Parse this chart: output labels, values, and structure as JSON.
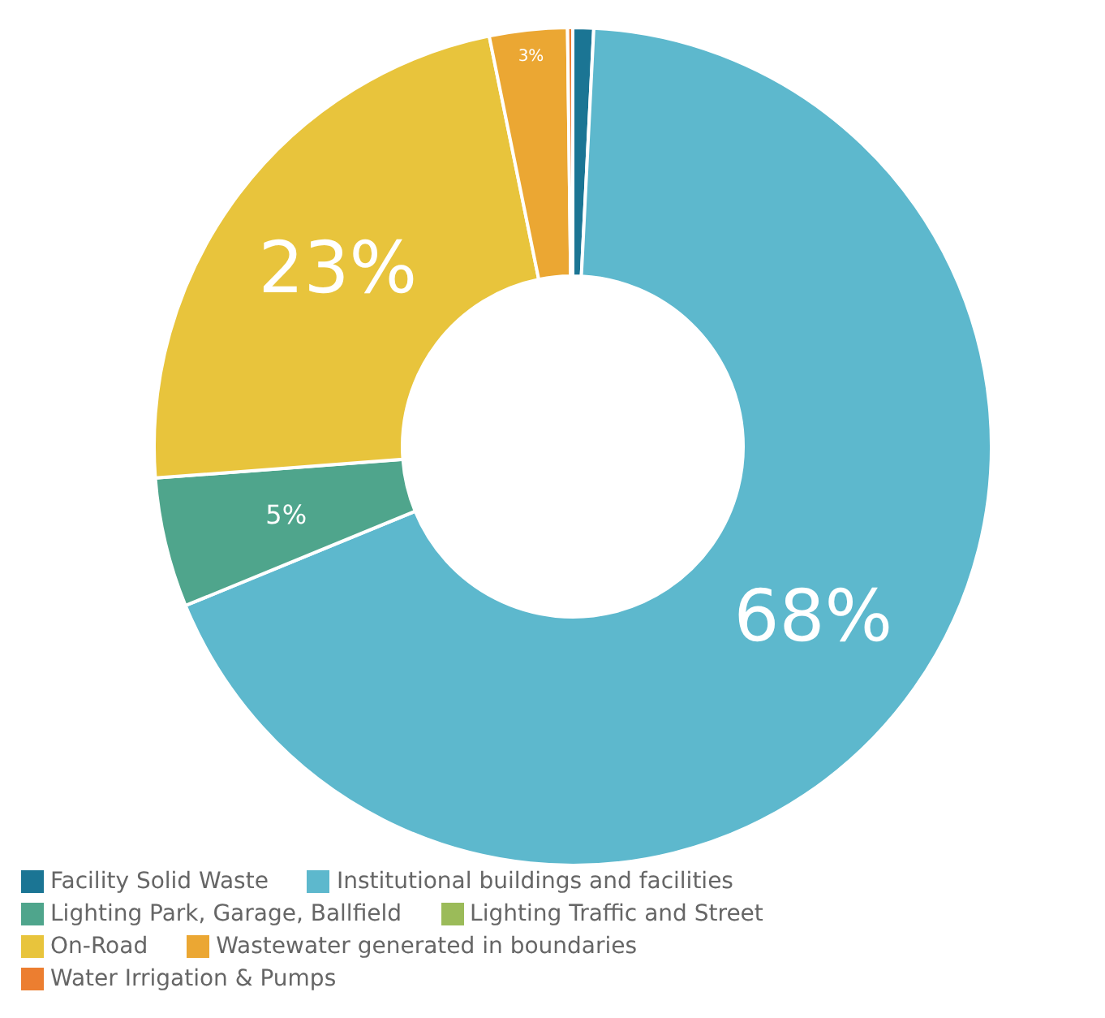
{
  "chart_data": {
    "type": "donut",
    "categories": [
      "Facility Solid Waste",
      "Institutional buildings and facilities",
      "Lighting Park, Garage, Ballfield",
      "Lighting Traffic and Street",
      "On-Road",
      "Wastewater generated in boundaries",
      "Water Irrigation & Pumps"
    ],
    "values": [
      0.8,
      68,
      5,
      null,
      23,
      3,
      0.2
    ],
    "colors": [
      "#1b7594",
      "#5db8cd",
      "#4fa58c",
      "#9bbb59",
      "#e8c43c",
      "#eba733",
      "#ec7e30"
    ],
    "value_labels": [
      null,
      "68%",
      "5%",
      null,
      "23%",
      "3%",
      null
    ],
    "legend": "bottom"
  }
}
